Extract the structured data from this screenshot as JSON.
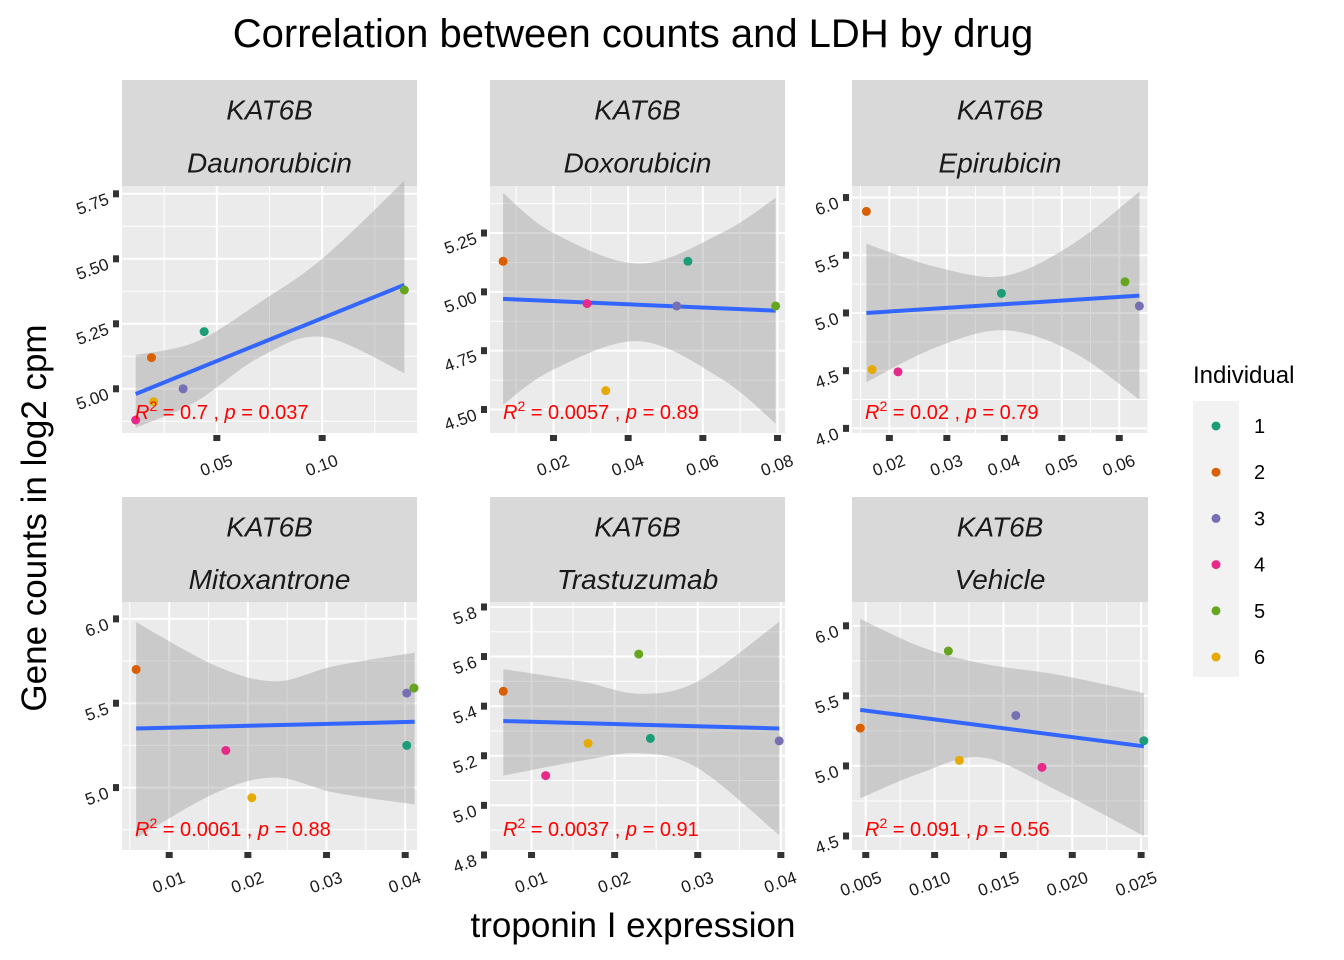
{
  "title": "Correlation between counts and LDH by drug",
  "xlabel": "troponin I expression",
  "ylabel": "Gene counts in log2 cpm",
  "legend": {
    "title": "Individual",
    "entries": [
      {
        "label": "1",
        "color": "#1b9e77"
      },
      {
        "label": "2",
        "color": "#d95f02"
      },
      {
        "label": "3",
        "color": "#7570b3"
      },
      {
        "label": "4",
        "color": "#e7298a"
      },
      {
        "label": "5",
        "color": "#66a61e"
      },
      {
        "label": "6",
        "color": "#e6ab02"
      }
    ]
  },
  "colors": {
    "panel_bg": "#ebebeb",
    "strip_bg": "#d9d9d9",
    "grid": "#ffffff",
    "fit_line": "#3366ff",
    "ribbon": "#999999",
    "stat_text": "#ff0000"
  },
  "chart_data": [
    {
      "type": "scatter",
      "gene": "KAT6B",
      "drug": "Daunorubicin",
      "xlim": [
        0.005,
        0.145
      ],
      "ylim": [
        4.83,
        5.78
      ],
      "xticks": [
        0.05,
        0.1
      ],
      "xtick_labels": [
        "0.05",
        "0.10"
      ],
      "yticks": [
        5.0,
        5.25,
        5.5,
        5.75
      ],
      "ytick_labels": [
        "5.00",
        "5.25",
        "5.50",
        "5.75"
      ],
      "points": [
        {
          "individual": "1",
          "x": 0.044,
          "y": 5.22
        },
        {
          "individual": "2",
          "x": 0.019,
          "y": 5.12
        },
        {
          "individual": "3",
          "x": 0.034,
          "y": 5.0
        },
        {
          "individual": "4",
          "x": 0.0115,
          "y": 4.88
        },
        {
          "individual": "5",
          "x": 0.139,
          "y": 5.38
        },
        {
          "individual": "6",
          "x": 0.02,
          "y": 4.95
        }
      ],
      "fit": {
        "x": [
          0.0115,
          0.139
        ],
        "y": [
          4.98,
          5.4
        ]
      },
      "band_upper": [
        [
          0.0115,
          5.13
        ],
        [
          0.04,
          5.18
        ],
        [
          0.07,
          5.33
        ],
        [
          0.1,
          5.5
        ],
        [
          0.139,
          5.8
        ]
      ],
      "band_lower": [
        [
          0.0115,
          4.85
        ],
        [
          0.04,
          4.95
        ],
        [
          0.07,
          5.12
        ],
        [
          0.1,
          5.2
        ],
        [
          0.139,
          5.06
        ]
      ],
      "stat": {
        "r2": "0.7",
        "p": "0.037"
      }
    },
    {
      "type": "scatter",
      "gene": "KAT6B",
      "drug": "Doxorubicin",
      "xlim": [
        0.003,
        0.082
      ],
      "ylim": [
        4.4,
        5.45
      ],
      "xticks": [
        0.02,
        0.04,
        0.06,
        0.08
      ],
      "xtick_labels": [
        "0.02",
        "0.04",
        "0.06",
        "0.08"
      ],
      "yticks": [
        4.5,
        4.75,
        5.0,
        5.25
      ],
      "ytick_labels": [
        "4.50",
        "4.75",
        "5.00",
        "5.25"
      ],
      "points": [
        {
          "individual": "1",
          "x": 0.056,
          "y": 5.13
        },
        {
          "individual": "2",
          "x": 0.0065,
          "y": 5.13
        },
        {
          "individual": "3",
          "x": 0.053,
          "y": 4.94
        },
        {
          "individual": "4",
          "x": 0.029,
          "y": 4.95
        },
        {
          "individual": "5",
          "x": 0.0795,
          "y": 4.94
        },
        {
          "individual": "6",
          "x": 0.034,
          "y": 4.58
        }
      ],
      "fit": {
        "x": [
          0.0065,
          0.0795
        ],
        "y": [
          4.97,
          4.92
        ]
      },
      "band_upper": [
        [
          0.0065,
          5.42
        ],
        [
          0.02,
          5.25
        ],
        [
          0.043,
          5.12
        ],
        [
          0.065,
          5.25
        ],
        [
          0.0795,
          5.4
        ]
      ],
      "band_lower": [
        [
          0.0065,
          4.52
        ],
        [
          0.02,
          4.67
        ],
        [
          0.043,
          4.79
        ],
        [
          0.065,
          4.63
        ],
        [
          0.0795,
          4.44
        ]
      ],
      "stat": {
        "r2": "0.0057",
        "p": "0.89"
      }
    },
    {
      "type": "scatter",
      "gene": "KAT6B",
      "drug": "Epirubicin",
      "xlim": [
        0.0135,
        0.065
      ],
      "ylim": [
        3.96,
        6.1
      ],
      "xticks": [
        0.02,
        0.03,
        0.04,
        0.05,
        0.06
      ],
      "xtick_labels": [
        "0.02",
        "0.03",
        "0.04",
        "0.05",
        "0.06"
      ],
      "yticks": [
        4.0,
        4.5,
        5.0,
        5.5,
        6.0
      ],
      "ytick_labels": [
        "4.0",
        "4.5",
        "5.0",
        "5.5",
        "6.0"
      ],
      "points": [
        {
          "individual": "1",
          "x": 0.0395,
          "y": 5.17
        },
        {
          "individual": "2",
          "x": 0.016,
          "y": 5.88
        },
        {
          "individual": "3",
          "x": 0.0635,
          "y": 5.06
        },
        {
          "individual": "4",
          "x": 0.0215,
          "y": 4.49
        },
        {
          "individual": "5",
          "x": 0.061,
          "y": 5.27
        },
        {
          "individual": "6",
          "x": 0.017,
          "y": 4.51
        }
      ],
      "fit": {
        "x": [
          0.016,
          0.0635
        ],
        "y": [
          5.0,
          5.15
        ]
      },
      "band_upper": [
        [
          0.016,
          5.6
        ],
        [
          0.028,
          5.4
        ],
        [
          0.04,
          5.32
        ],
        [
          0.052,
          5.6
        ],
        [
          0.0635,
          6.05
        ]
      ],
      "band_lower": [
        [
          0.016,
          4.4
        ],
        [
          0.028,
          4.7
        ],
        [
          0.04,
          4.85
        ],
        [
          0.052,
          4.66
        ],
        [
          0.0635,
          4.25
        ]
      ],
      "stat": {
        "r2": "0.02",
        "p": "0.79"
      }
    },
    {
      "type": "scatter",
      "gene": "KAT6B",
      "drug": "Mitoxantrone",
      "xlim": [
        0.004,
        0.0415
      ],
      "ylim": [
        4.63,
        6.1
      ],
      "xticks": [
        0.01,
        0.02,
        0.03,
        0.04
      ],
      "xtick_labels": [
        "0.01",
        "0.02",
        "0.03",
        "0.04"
      ],
      "yticks": [
        5.0,
        5.5,
        6.0
      ],
      "ytick_labels": [
        "5.0",
        "5.5",
        "6.0"
      ],
      "points": [
        {
          "individual": "1",
          "x": 0.0402,
          "y": 5.25
        },
        {
          "individual": "2",
          "x": 0.0058,
          "y": 5.7
        },
        {
          "individual": "3",
          "x": 0.0402,
          "y": 5.56
        },
        {
          "individual": "4",
          "x": 0.0172,
          "y": 5.22
        },
        {
          "individual": "5",
          "x": 0.0412,
          "y": 5.59
        },
        {
          "individual": "6",
          "x": 0.0205,
          "y": 4.94
        }
      ],
      "fit": {
        "x": [
          0.0058,
          0.0412
        ],
        "y": [
          5.35,
          5.39
        ]
      },
      "band_upper": [
        [
          0.0058,
          5.98
        ],
        [
          0.016,
          5.72
        ],
        [
          0.0235,
          5.63
        ],
        [
          0.031,
          5.72
        ],
        [
          0.0412,
          5.8
        ]
      ],
      "band_lower": [
        [
          0.0058,
          4.7
        ],
        [
          0.016,
          4.97
        ],
        [
          0.0235,
          5.06
        ],
        [
          0.031,
          4.97
        ],
        [
          0.0412,
          4.9
        ]
      ],
      "stat": {
        "r2": "0.0061",
        "p": "0.88"
      }
    },
    {
      "type": "scatter",
      "gene": "KAT6B",
      "drug": "Trastuzumab",
      "xlim": [
        0.005,
        0.0405
      ],
      "ylim": [
        4.82,
        5.82
      ],
      "xticks": [
        0.01,
        0.02,
        0.03,
        0.04
      ],
      "xtick_labels": [
        "0.01",
        "0.02",
        "0.03",
        "0.04"
      ],
      "yticks": [
        4.8,
        5.0,
        5.2,
        5.4,
        5.6,
        5.8
      ],
      "ytick_labels": [
        "4.8",
        "5.0",
        "5.2",
        "5.4",
        "5.6",
        "5.8"
      ],
      "points": [
        {
          "individual": "1",
          "x": 0.0243,
          "y": 5.27
        },
        {
          "individual": "2",
          "x": 0.0066,
          "y": 5.46
        },
        {
          "individual": "3",
          "x": 0.0398,
          "y": 5.26
        },
        {
          "individual": "4",
          "x": 0.0117,
          "y": 5.12
        },
        {
          "individual": "5",
          "x": 0.0229,
          "y": 5.61
        },
        {
          "individual": "6",
          "x": 0.0168,
          "y": 5.25
        }
      ],
      "fit": {
        "x": [
          0.0066,
          0.0398
        ],
        "y": [
          5.34,
          5.31
        ]
      },
      "band_upper": [
        [
          0.0066,
          5.55
        ],
        [
          0.016,
          5.5
        ],
        [
          0.023,
          5.45
        ],
        [
          0.03,
          5.5
        ],
        [
          0.0398,
          5.74
        ]
      ],
      "band_lower": [
        [
          0.0066,
          5.12
        ],
        [
          0.016,
          5.18
        ],
        [
          0.023,
          5.21
        ],
        [
          0.03,
          5.15
        ],
        [
          0.0398,
          4.88
        ]
      ],
      "stat": {
        "r2": "0.0037",
        "p": "0.91"
      }
    },
    {
      "type": "scatter",
      "gene": "KAT6B",
      "drug": "Vehicle",
      "xlim": [
        0.004,
        0.0255
      ],
      "ylim": [
        4.4,
        6.17
      ],
      "xticks": [
        0.005,
        0.01,
        0.015,
        0.02,
        0.025
      ],
      "xtick_labels": [
        "0.005",
        "0.010",
        "0.015",
        "0.020",
        "0.025"
      ],
      "yticks": [
        4.5,
        5.0,
        5.5,
        6.0
      ],
      "ytick_labels": [
        "4.5",
        "5.0",
        "5.5",
        "6.0"
      ],
      "points": [
        {
          "individual": "1",
          "x": 0.0252,
          "y": 5.18
        },
        {
          "individual": "2",
          "x": 0.0046,
          "y": 5.27
        },
        {
          "individual": "3",
          "x": 0.0159,
          "y": 5.36
        },
        {
          "individual": "4",
          "x": 0.0178,
          "y": 4.99
        },
        {
          "individual": "5",
          "x": 0.011,
          "y": 5.82
        },
        {
          "individual": "6",
          "x": 0.0118,
          "y": 5.04
        }
      ],
      "fit": {
        "x": [
          0.0046,
          0.0252
        ],
        "y": [
          5.4,
          5.14
        ]
      },
      "band_upper": [
        [
          0.0046,
          6.05
        ],
        [
          0.009,
          5.85
        ],
        [
          0.0135,
          5.73
        ],
        [
          0.019,
          5.65
        ],
        [
          0.0252,
          5.52
        ]
      ],
      "band_lower": [
        [
          0.0046,
          4.77
        ],
        [
          0.009,
          4.95
        ],
        [
          0.0135,
          5.06
        ],
        [
          0.019,
          4.82
        ],
        [
          0.0252,
          4.5
        ]
      ],
      "stat": {
        "r2": "0.091",
        "p": "0.56"
      }
    }
  ]
}
